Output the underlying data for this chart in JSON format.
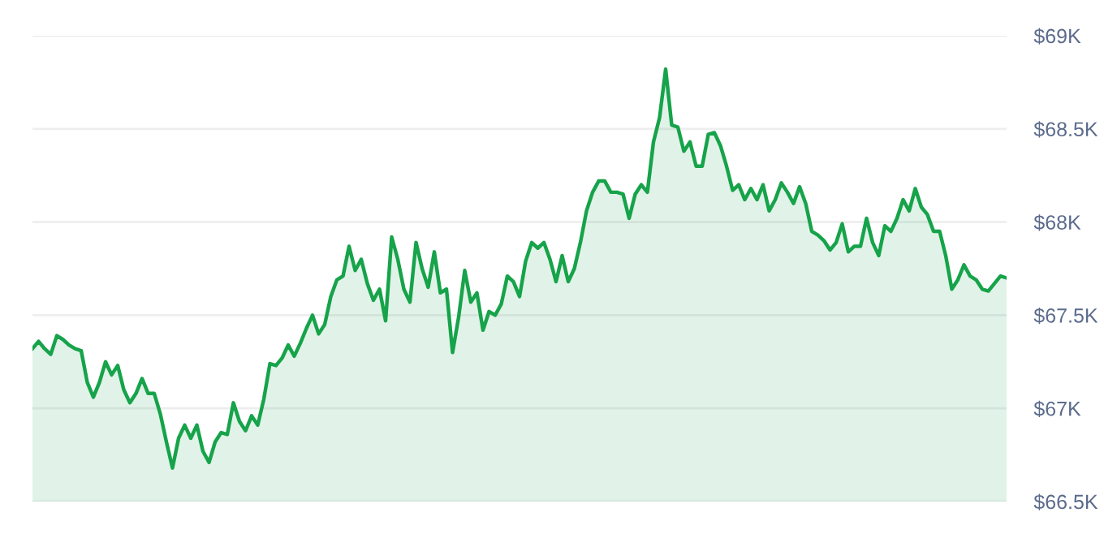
{
  "chart_data": {
    "type": "area",
    "color": "#16a34a",
    "grid": "y",
    "ylim": [
      66500,
      69000
    ],
    "yticks": [
      {
        "value": 66500,
        "label": "$66.5K"
      },
      {
        "value": 67000,
        "label": "$67K"
      },
      {
        "value": 67500,
        "label": "$67.5K"
      },
      {
        "value": 68000,
        "label": "$68K"
      },
      {
        "value": 68500,
        "label": "$68.5K"
      },
      {
        "value": 69000,
        "label": "$69K"
      }
    ],
    "categories": [
      null,
      null,
      null,
      null,
      null,
      null,
      null,
      null,
      null,
      null,
      null,
      null,
      null,
      null,
      null,
      null,
      null,
      null,
      null,
      null,
      null,
      null,
      null,
      null,
      null,
      null,
      null,
      null,
      null,
      null,
      null,
      null,
      null,
      null,
      null,
      null,
      null,
      null,
      null,
      null,
      null,
      null,
      null,
      null,
      null,
      null,
      null,
      null,
      null,
      null,
      null,
      null,
      null,
      null,
      null,
      null,
      null,
      null,
      null,
      null,
      null,
      null,
      null,
      null,
      null,
      null,
      null,
      null,
      null,
      null,
      null,
      null,
      null,
      null,
      null,
      null,
      null,
      null,
      null,
      null,
      null,
      null,
      null,
      null,
      null,
      null,
      null,
      null,
      null,
      null,
      null,
      null,
      null,
      null,
      null,
      null,
      null,
      null,
      null,
      null,
      null,
      null,
      null,
      null,
      null,
      null,
      null,
      null,
      null,
      null,
      null,
      null,
      null,
      null,
      null,
      null,
      null,
      null,
      null,
      null,
      null,
      null,
      null,
      null,
      null,
      null,
      null,
      null,
      null,
      null,
      null,
      null,
      null,
      null,
      null,
      null,
      null,
      null,
      null,
      null,
      null,
      null,
      null,
      null,
      null,
      null,
      null,
      null,
      null,
      null,
      null,
      null,
      null,
      null,
      null,
      null,
      null,
      null,
      null,
      null,
      null
    ],
    "values": [
      67320,
      67360,
      67320,
      67290,
      67390,
      67370,
      67340,
      67320,
      67310,
      67140,
      67060,
      67140,
      67250,
      67180,
      67230,
      67100,
      67030,
      67080,
      67160,
      67080,
      67080,
      66970,
      66820,
      66680,
      66840,
      66910,
      66840,
      66910,
      66770,
      66710,
      66820,
      66870,
      66860,
      67030,
      66930,
      66880,
      66960,
      66910,
      67050,
      67240,
      67230,
      67270,
      67340,
      67280,
      67350,
      67430,
      67500,
      67400,
      67450,
      67600,
      67690,
      67710,
      67870,
      67740,
      67800,
      67670,
      67580,
      67640,
      67470,
      67920,
      67800,
      67640,
      67570,
      67890,
      67750,
      67650,
      67840,
      67620,
      67640,
      67300,
      67490,
      67740,
      67570,
      67620,
      67420,
      67520,
      67500,
      67560,
      67710,
      67680,
      67600,
      67790,
      67890,
      67860,
      67890,
      67800,
      67680,
      67820,
      67680,
      67750,
      67890,
      68060,
      68160,
      68220,
      68220,
      68160,
      68160,
      68150,
      68020,
      68150,
      68200,
      68160,
      68430,
      68560,
      68820,
      68520,
      68510,
      68380,
      68430,
      68300,
      68300,
      68470,
      68480,
      68410,
      68300,
      68170,
      68200,
      68120,
      68180,
      68120,
      68200,
      68060,
      68120,
      68210,
      68160,
      68100,
      68190,
      68100,
      67950,
      67930,
      67900,
      67850,
      67890,
      67990,
      67840,
      67870,
      67870,
      68020,
      67890,
      67820,
      67980,
      67950,
      68020,
      68120,
      68060,
      68180,
      68080,
      68040,
      67950,
      67950,
      67820,
      67640,
      67690,
      67770,
      67710,
      67690,
      67640,
      67630,
      67670,
      67710,
      67700
    ]
  }
}
